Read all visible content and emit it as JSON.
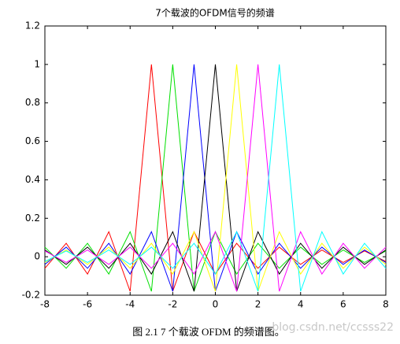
{
  "chart_data": {
    "type": "line",
    "title": "7个载波的OFDM信号的频谱",
    "caption": "图 2.1 7 个载波 OFDM 的频谱图。",
    "watermark": "blog.csdn.net/ccsss22",
    "x": [
      -8,
      -7,
      -6,
      -5,
      -4,
      -3,
      -2,
      -1,
      0,
      1,
      2,
      3,
      4,
      5,
      6,
      7,
      8
    ],
    "xlim": [
      -8,
      8
    ],
    "xticks": [
      -8,
      -6,
      -4,
      -2,
      0,
      2,
      4,
      6,
      8
    ],
    "ylim": [
      -0.2,
      1.2
    ],
    "yticks": [
      -0.2,
      0,
      0.2,
      0.4,
      0.6,
      0.8,
      1,
      1.2
    ],
    "grid": false,
    "series": [
      {
        "color": "#ff0000",
        "values": [
          -0.06,
          0.07,
          -0.09,
          0.13,
          -0.18,
          1,
          -0.18,
          0.13,
          -0.09,
          0.07,
          -0.06,
          0.05,
          -0.04,
          0.035,
          -0.03,
          0.03,
          -0.025
        ]
      },
      {
        "color": "#00e000",
        "values": [
          0.05,
          -0.06,
          0.07,
          -0.09,
          0.13,
          -0.18,
          1,
          -0.18,
          0.13,
          -0.09,
          0.07,
          -0.06,
          0.05,
          -0.04,
          0.035,
          -0.03,
          0.03
        ]
      },
      {
        "color": "#0000ff",
        "values": [
          -0.04,
          0.05,
          -0.06,
          0.07,
          -0.09,
          0.13,
          -0.18,
          1,
          -0.18,
          0.13,
          -0.09,
          0.07,
          -0.06,
          0.05,
          -0.04,
          0.035,
          -0.03
        ]
      },
      {
        "color": "#000000",
        "values": [
          0.035,
          -0.04,
          0.05,
          -0.06,
          0.07,
          -0.09,
          0.13,
          -0.18,
          1,
          -0.18,
          0.13,
          -0.09,
          0.07,
          -0.06,
          0.05,
          -0.04,
          0.035
        ]
      },
      {
        "color": "#ffff00",
        "values": [
          -0.03,
          0.035,
          -0.04,
          0.05,
          -0.06,
          0.07,
          -0.09,
          0.13,
          -0.18,
          1,
          -0.18,
          0.13,
          -0.09,
          0.07,
          -0.06,
          0.05,
          -0.04
        ]
      },
      {
        "color": "#ff00ff",
        "values": [
          0.03,
          -0.03,
          0.035,
          -0.04,
          0.05,
          -0.06,
          0.07,
          -0.09,
          0.13,
          -0.18,
          1,
          -0.18,
          0.13,
          -0.09,
          0.07,
          -0.06,
          0.05
        ]
      },
      {
        "color": "#00ffff",
        "values": [
          -0.025,
          0.03,
          -0.03,
          0.035,
          -0.04,
          0.05,
          -0.06,
          0.07,
          -0.09,
          0.13,
          -0.18,
          1,
          -0.18,
          0.13,
          -0.09,
          0.07,
          -0.06
        ]
      }
    ]
  }
}
